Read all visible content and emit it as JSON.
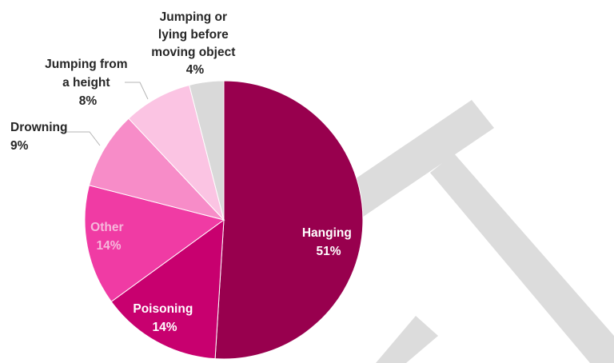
{
  "chart_data": {
    "type": "pie",
    "title": "",
    "start_angle_deg": 0,
    "direction": "clockwise",
    "slices": [
      {
        "name": "Hanging",
        "value": 51,
        "label": "51%",
        "color": "#98004e"
      },
      {
        "name": "Poisoning",
        "value": 14,
        "label": "14%",
        "color": "#c8006f"
      },
      {
        "name": "Other",
        "value": 14,
        "label": "14%",
        "color": "#f03ba4"
      },
      {
        "name": "Drowning",
        "value": 9,
        "label": "9%",
        "color": "#f78cc8"
      },
      {
        "name": "Jumping from a height",
        "value": 8,
        "label": "8%",
        "color": "#fbc4e3"
      },
      {
        "name": "Jumping or lying before moving object",
        "value": 4,
        "label": "4%",
        "color": "#d9d9d9"
      }
    ],
    "label_lines": {
      "hanging": [
        "Hanging",
        "51%"
      ],
      "poisoning": [
        "Poisoning",
        "14%"
      ],
      "other": [
        "Other",
        "14%"
      ],
      "drowning": [
        "Drowning",
        "9%"
      ],
      "jumping_height": [
        "Jumping from",
        "a height",
        "8%"
      ],
      "jumping_moving": [
        "Jumping or",
        "lying before",
        "moving object",
        "4%"
      ]
    },
    "leader_color": "#b5b5b5",
    "watermark_color": "#dcdcdc"
  }
}
